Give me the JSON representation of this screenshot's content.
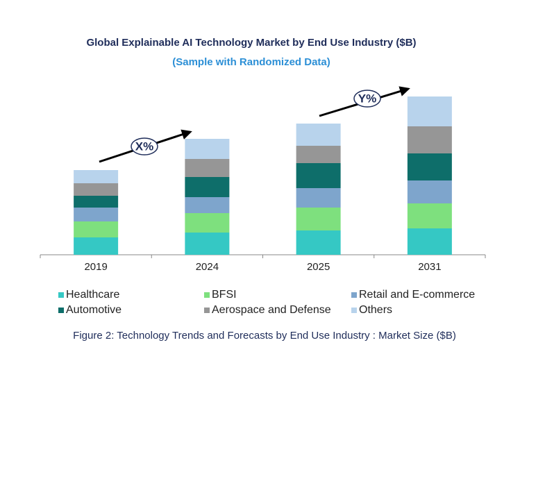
{
  "chart_data": {
    "type": "stacked_bar",
    "title": "Global Explainable AI Technology Market by End Use Industry ($B)",
    "subtitle": "(Sample with Randomized Data)",
    "caption": "Figure 2: Technology Trends and Forecasts by End Use Industry : Market Size ($B)",
    "categories": [
      "2019",
      "2024",
      "2025",
      "2031"
    ],
    "ylim": [
      0,
      250
    ],
    "series": [
      {
        "name": "Healthcare",
        "color": "#35c8c4",
        "values": [
          25,
          32,
          35,
          38
        ]
      },
      {
        "name": "BFSI",
        "color": "#7ee07e",
        "values": [
          23,
          28,
          33,
          36
        ]
      },
      {
        "name": "Retail and E-commerce",
        "color": "#7ea5cc",
        "values": [
          20,
          23,
          28,
          33
        ]
      },
      {
        "name": "Automotive",
        "color": "#0e6e6a",
        "values": [
          17,
          29,
          36,
          39
        ]
      },
      {
        "name": "Aerospace and Defense",
        "color": "#969696",
        "values": [
          18,
          26,
          25,
          39
        ]
      },
      {
        "name": "Others",
        "color": "#b8d3ec",
        "values": [
          19,
          29,
          32,
          43
        ]
      }
    ],
    "annotations": [
      "X%",
      "Y%"
    ]
  }
}
